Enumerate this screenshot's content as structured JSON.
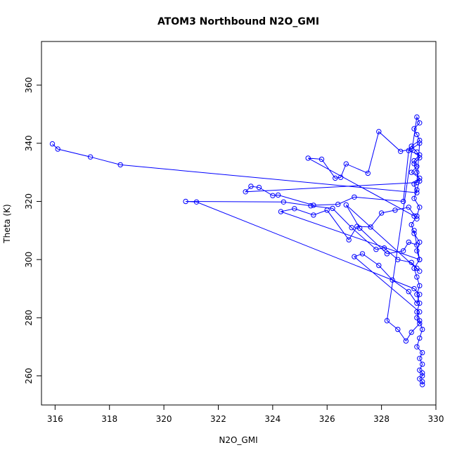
{
  "chart_data": {
    "type": "line",
    "title": "ATOM3 Northbound N2O_GMI",
    "xlabel": "N2O_GMI",
    "ylabel": "Theta (K)",
    "xlim": [
      315.5,
      330.0
    ],
    "ylim": [
      250.0,
      375.0
    ],
    "xticks": [
      316,
      318,
      320,
      322,
      324,
      326,
      328,
      330
    ],
    "yticks": [
      260,
      280,
      300,
      320,
      340,
      360
    ],
    "grid": false,
    "legend": "none",
    "color": "#0000ff",
    "marker": "open-circle",
    "series": [
      {
        "name": "",
        "x": [
          315.9,
          316.1,
          317.3,
          318.4,
          329.3,
          329.2,
          329.4,
          329.1,
          329.3,
          329.2,
          329.4,
          329.0,
          328.8,
          327.0,
          326.4,
          325.5,
          324.2,
          324.0,
          323.5,
          323.2,
          323.0,
          329.3,
          329.4,
          329.1,
          328.7,
          327.9,
          327.5,
          326.7,
          326.5,
          326.3,
          325.8,
          325.3,
          329.2,
          329.3,
          329.0,
          328.5,
          328.0,
          327.6,
          327.1,
          326.8,
          326.0,
          325.5,
          324.8,
          324.3,
          329.4,
          329.2,
          329.3,
          329.0,
          328.8,
          328.2,
          327.2,
          326.7,
          329.4,
          329.3,
          329.1,
          328.6,
          328.1,
          327.8,
          326.9,
          326.2,
          325.4,
          324.4,
          320.8,
          321.2,
          329.2,
          329.4,
          329.3,
          329.0,
          328.4,
          327.9,
          327.3,
          327.0,
          329.4,
          329.3,
          329.4,
          329.1,
          328.9,
          328.6,
          328.2,
          329.3,
          329.4,
          329.2,
          329.3,
          329.4,
          329.1,
          329.3,
          329.4,
          329.2,
          329.3,
          329.4,
          329.3,
          329.2,
          329.4,
          329.3,
          329.1,
          329.2,
          329.4,
          329.3,
          329.4,
          329.2,
          329.3,
          329.4,
          329.3,
          329.4,
          329.3,
          329.4,
          329.5,
          329.4,
          329.3,
          329.5,
          329.4,
          329.5,
          329.4,
          329.5,
          329.5,
          329.4,
          329.5,
          329.5
        ],
        "y": [
          339.8,
          338.0,
          335.3,
          332.6,
          323.0,
          326.0,
          328.0,
          330.0,
          332.0,
          334.0,
          336.0,
          337.5,
          320.0,
          321.5,
          319.0,
          318.7,
          322.2,
          322.0,
          324.8,
          325.2,
          323.3,
          326.5,
          340.0,
          338.0,
          337.2,
          344.0,
          329.7,
          332.9,
          328.3,
          328.0,
          334.5,
          334.9,
          315.0,
          314.0,
          318.0,
          317.0,
          316.0,
          311.2,
          311.4,
          306.8,
          317.0,
          315.3,
          317.5,
          316.5,
          300.0,
          310.0,
          305.0,
          306.0,
          303.0,
          302.0,
          310.8,
          318.8,
          296.0,
          297.0,
          299.0,
          300.0,
          304.0,
          303.5,
          311.0,
          317.6,
          318.5,
          319.8,
          320.0,
          319.8,
          290.0,
          288.0,
          285.0,
          289.0,
          293.0,
          298.0,
          302.0,
          301.0,
          282.0,
          280.0,
          278.0,
          275.0,
          272.0,
          276.0,
          279.0,
          349.0,
          347.0,
          345.0,
          343.0,
          341.0,
          339.0,
          337.0,
          335.0,
          333.0,
          330.0,
          327.0,
          324.0,
          321.0,
          318.0,
          315.0,
          312.0,
          309.0,
          306.0,
          303.0,
          300.0,
          297.0,
          294.0,
          291.0,
          288.0,
          285.0,
          282.0,
          279.0,
          276.0,
          273.0,
          270.0,
          268.0,
          266.0,
          264.0,
          262.0,
          261.0,
          260.0,
          259.0,
          258.0,
          257.0
        ]
      }
    ]
  }
}
